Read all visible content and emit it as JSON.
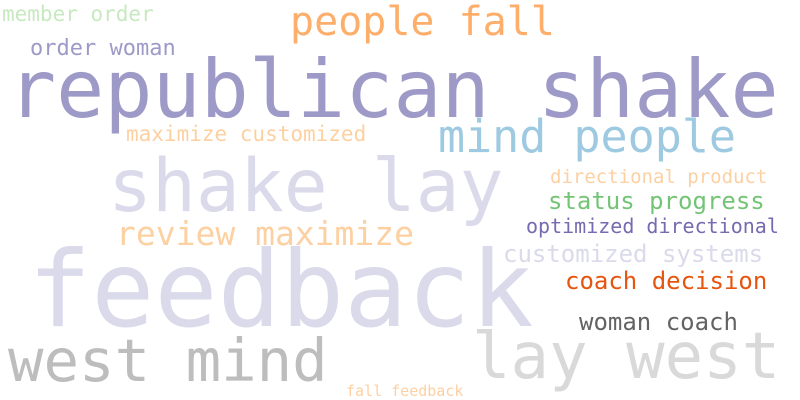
{
  "words": [
    {
      "text": "member order",
      "color": "#c7e9c0"
    },
    {
      "text": "people fall",
      "color": "#fdae6b"
    },
    {
      "text": "order woman",
      "color": "#9e9ac8"
    },
    {
      "text": "republican shake",
      "color": "#9e9ac8"
    },
    {
      "text": "maximize customized",
      "color": "#fdd0a2"
    },
    {
      "text": "mind people",
      "color": "#9ecae1"
    },
    {
      "text": "shake lay",
      "color": "#dadaeb"
    },
    {
      "text": "directional product",
      "color": "#fdd0a2"
    },
    {
      "text": "status progress",
      "color": "#74c476"
    },
    {
      "text": "review maximize",
      "color": "#fdd0a2"
    },
    {
      "text": "optimized directional",
      "color": "#756bb1"
    },
    {
      "text": "customized systems",
      "color": "#dadaeb"
    },
    {
      "text": "feedback",
      "color": "#dadaeb"
    },
    {
      "text": "coach decision",
      "color": "#e6550d"
    },
    {
      "text": "woman coach",
      "color": "#636363"
    },
    {
      "text": "west mind",
      "color": "#bdbdbd"
    },
    {
      "text": "lay west",
      "color": "#d9d9d9"
    },
    {
      "text": "fall feedback",
      "color": "#fdd0a2"
    }
  ]
}
